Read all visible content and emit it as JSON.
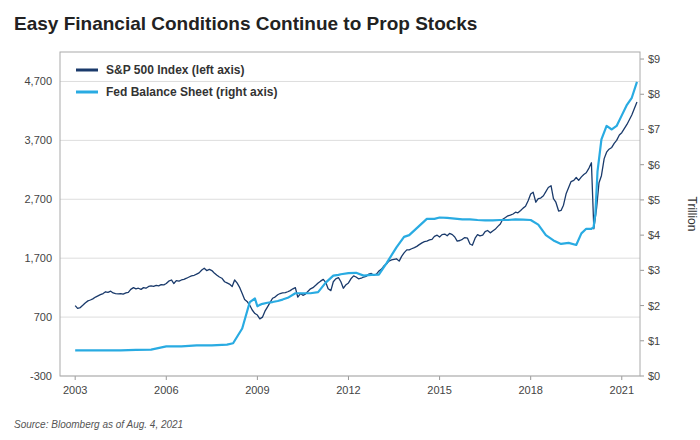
{
  "chart_data": {
    "type": "line",
    "title": "Easy Financial Conditions Continue to Prop Stocks",
    "annotations": [
      "Source: Bloomberg as of Aug. 4, 2021"
    ],
    "y2label": "Trillion",
    "xlim": [
      2002.5,
      2021.6
    ],
    "xticks": [
      2003,
      2006,
      2009,
      2012,
      2015,
      2018,
      2021
    ],
    "ylim": [
      -300,
      5200
    ],
    "yticks": [
      -300,
      700,
      {
        "value": 1700,
        "label": "1,700"
      },
      {
        "value": 2700,
        "label": "2,700"
      },
      {
        "value": 3700,
        "label": "3,700"
      },
      {
        "value": 4700,
        "label": "4,700"
      }
    ],
    "y2lim": [
      0,
      9.2
    ],
    "y2ticks": [
      {
        "value": 0,
        "label": "$0"
      },
      {
        "value": 1,
        "label": "$1"
      },
      {
        "value": 2,
        "label": "$2"
      },
      {
        "value": 3,
        "label": "$3"
      },
      {
        "value": 4,
        "label": "$4"
      },
      {
        "value": 5,
        "label": "$5"
      },
      {
        "value": 6,
        "label": "$6"
      },
      {
        "value": 7,
        "label": "$7"
      },
      {
        "value": 8,
        "label": "$8"
      },
      {
        "value": 9,
        "label": "$9"
      }
    ],
    "grid": true,
    "legend": "upper left",
    "series": [
      {
        "name": "S&P 500 Index (left axis)",
        "color": "#1a3a6b",
        "x": [
          2003.0,
          2003.08,
          2003.17,
          2003.25,
          2003.33,
          2003.42,
          2003.5,
          2003.58,
          2003.67,
          2003.75,
          2003.83,
          2003.92,
          2004.0,
          2004.08,
          2004.17,
          2004.25,
          2004.33,
          2004.42,
          2004.5,
          2004.58,
          2004.67,
          2004.75,
          2004.83,
          2004.92,
          2005.0,
          2005.08,
          2005.17,
          2005.25,
          2005.33,
          2005.42,
          2005.5,
          2005.58,
          2005.67,
          2005.75,
          2005.83,
          2005.92,
          2006.0,
          2006.08,
          2006.17,
          2006.25,
          2006.33,
          2006.42,
          2006.5,
          2006.58,
          2006.67,
          2006.75,
          2006.83,
          2006.92,
          2007.0,
          2007.08,
          2007.17,
          2007.25,
          2007.33,
          2007.42,
          2007.5,
          2007.58,
          2007.67,
          2007.75,
          2007.83,
          2007.92,
          2008.0,
          2008.08,
          2008.17,
          2008.25,
          2008.33,
          2008.42,
          2008.5,
          2008.58,
          2008.67,
          2008.75,
          2008.83,
          2008.92,
          2009.0,
          2009.08,
          2009.17,
          2009.25,
          2009.33,
          2009.42,
          2009.5,
          2009.58,
          2009.67,
          2009.75,
          2009.83,
          2009.92,
          2010.0,
          2010.08,
          2010.17,
          2010.25,
          2010.33,
          2010.42,
          2010.5,
          2010.58,
          2010.67,
          2010.75,
          2010.83,
          2010.92,
          2011.0,
          2011.08,
          2011.17,
          2011.25,
          2011.33,
          2011.42,
          2011.5,
          2011.58,
          2011.67,
          2011.75,
          2011.83,
          2011.92,
          2012.0,
          2012.08,
          2012.17,
          2012.25,
          2012.33,
          2012.42,
          2012.5,
          2012.58,
          2012.67,
          2012.75,
          2012.83,
          2012.92,
          2013.0,
          2013.08,
          2013.17,
          2013.25,
          2013.33,
          2013.42,
          2013.5,
          2013.58,
          2013.67,
          2013.75,
          2013.83,
          2013.92,
          2014.0,
          2014.08,
          2014.17,
          2014.25,
          2014.33,
          2014.42,
          2014.5,
          2014.58,
          2014.67,
          2014.75,
          2014.83,
          2014.92,
          2015.0,
          2015.08,
          2015.17,
          2015.25,
          2015.33,
          2015.42,
          2015.5,
          2015.58,
          2015.67,
          2015.75,
          2015.83,
          2015.92,
          2016.0,
          2016.08,
          2016.17,
          2016.25,
          2016.33,
          2016.42,
          2016.5,
          2016.58,
          2016.67,
          2016.75,
          2016.83,
          2016.92,
          2017.0,
          2017.08,
          2017.17,
          2017.25,
          2017.33,
          2017.42,
          2017.5,
          2017.58,
          2017.67,
          2017.75,
          2017.83,
          2017.92,
          2018.0,
          2018.08,
          2018.17,
          2018.25,
          2018.33,
          2018.42,
          2018.5,
          2018.58,
          2018.67,
          2018.75,
          2018.83,
          2018.92,
          2019.0,
          2019.08,
          2019.17,
          2019.25,
          2019.33,
          2019.42,
          2019.5,
          2019.58,
          2019.67,
          2019.75,
          2019.83,
          2019.92,
          2020.0,
          2020.08,
          2020.17,
          2020.25,
          2020.33,
          2020.42,
          2020.5,
          2020.58,
          2020.67,
          2020.75,
          2020.83,
          2020.92,
          2021.0,
          2021.17,
          2021.33,
          2021.5
        ],
        "values": [
          895,
          848,
          862,
          900,
          940,
          975,
          990,
          1010,
          1040,
          1060,
          1080,
          1100,
          1130,
          1120,
          1140,
          1110,
          1100,
          1095,
          1100,
          1090,
          1110,
          1120,
          1170,
          1200,
          1180,
          1190,
          1170,
          1200,
          1190,
          1220,
          1230,
          1220,
          1240,
          1230,
          1250,
          1248,
          1270,
          1310,
          1330,
          1270,
          1320,
          1310,
          1330,
          1340,
          1360,
          1380,
          1400,
          1410,
          1430,
          1450,
          1500,
          1530,
          1490,
          1510,
          1490,
          1450,
          1410,
          1380,
          1360,
          1300,
          1280,
          1260,
          1220,
          1330,
          1280,
          1200,
          1100,
          1000,
          960,
          900,
          820,
          760,
          735,
          670,
          700,
          800,
          870,
          950,
          1020,
          1040,
          1080,
          1100,
          1110,
          1115,
          1130,
          1150,
          1180,
          1200,
          1040,
          1100,
          1070,
          1090,
          1140,
          1180,
          1200,
          1240,
          1280,
          1310,
          1340,
          1290,
          1180,
          1150,
          1300,
          1350,
          1370,
          1300,
          1190,
          1250,
          1280,
          1350,
          1400,
          1380,
          1350,
          1360,
          1380,
          1390,
          1430,
          1440,
          1410,
          1430,
          1480,
          1510,
          1570,
          1600,
          1650,
          1670,
          1680,
          1690,
          1650,
          1730,
          1790,
          1840,
          1840,
          1860,
          1880,
          1900,
          1930,
          1960,
          1980,
          1990,
          2010,
          2020,
          2070,
          2090,
          2060,
          2100,
          2110,
          2080,
          2120,
          2100,
          2060,
          1990,
          2000,
          2020,
          2050,
          2040,
          1940,
          1920,
          2040,
          2100,
          2080,
          2090,
          2150,
          2170,
          2130,
          2160,
          2190,
          2240,
          2280,
          2360,
          2390,
          2420,
          2430,
          2450,
          2480,
          2470,
          2510,
          2550,
          2580,
          2680,
          2790,
          2820,
          2650,
          2710,
          2720,
          2760,
          2830,
          2900,
          2930,
          2710,
          2650,
          2500,
          2510,
          2600,
          2800,
          2900,
          3000,
          3020,
          3070,
          3020,
          3080,
          3120,
          3150,
          3230,
          3320,
          2200,
          2550,
          2980,
          3100,
          3390,
          3500,
          3550,
          3580,
          3650,
          3700,
          3790,
          3830,
          3970,
          4130,
          4350
        ]
      },
      {
        "name": "Fed Balance Sheet (right axis)",
        "color": "#29ABE2",
        "axis": "y2",
        "x": [
          2003.0,
          2003.5,
          2004.0,
          2004.5,
          2005.0,
          2005.5,
          2006.0,
          2006.5,
          2007.0,
          2007.5,
          2008.0,
          2008.2,
          2008.5,
          2008.75,
          2008.92,
          2009.0,
          2009.08,
          2009.17,
          2009.33,
          2009.5,
          2009.67,
          2009.83,
          2010.0,
          2010.25,
          2010.5,
          2010.75,
          2011.0,
          2011.25,
          2011.5,
          2011.67,
          2011.75,
          2012.0,
          2012.25,
          2012.5,
          2012.75,
          2013.0,
          2013.25,
          2013.58,
          2013.83,
          2014.0,
          2014.25,
          2014.58,
          2014.83,
          2015.0,
          2015.25,
          2015.5,
          2015.75,
          2016.0,
          2016.25,
          2016.5,
          2016.75,
          2017.0,
          2017.25,
          2017.5,
          2017.75,
          2018.0,
          2018.25,
          2018.5,
          2018.75,
          2019.0,
          2019.25,
          2019.5,
          2019.67,
          2019.83,
          2020.0,
          2020.07,
          2020.13,
          2020.2,
          2020.33,
          2020.5,
          2020.67,
          2020.83,
          2021.0,
          2021.17,
          2021.33,
          2021.5
        ],
        "values": [
          0.73,
          0.73,
          0.73,
          0.73,
          0.74,
          0.75,
          0.84,
          0.84,
          0.87,
          0.87,
          0.89,
          0.93,
          1.35,
          2.1,
          2.2,
          1.98,
          2.02,
          2.05,
          2.08,
          2.1,
          2.13,
          2.17,
          2.22,
          2.35,
          2.35,
          2.35,
          2.38,
          2.65,
          2.85,
          2.87,
          2.89,
          2.92,
          2.93,
          2.85,
          2.87,
          2.88,
          3.2,
          3.65,
          3.95,
          4.0,
          4.2,
          4.46,
          4.46,
          4.5,
          4.49,
          4.47,
          4.45,
          4.45,
          4.43,
          4.42,
          4.42,
          4.43,
          4.43,
          4.45,
          4.44,
          4.43,
          4.3,
          4.0,
          3.85,
          3.75,
          3.78,
          3.72,
          4.05,
          4.18,
          4.18,
          4.22,
          4.6,
          5.8,
          6.72,
          7.1,
          7.0,
          7.1,
          7.4,
          7.7,
          7.9,
          8.35
        ]
      }
    ]
  }
}
